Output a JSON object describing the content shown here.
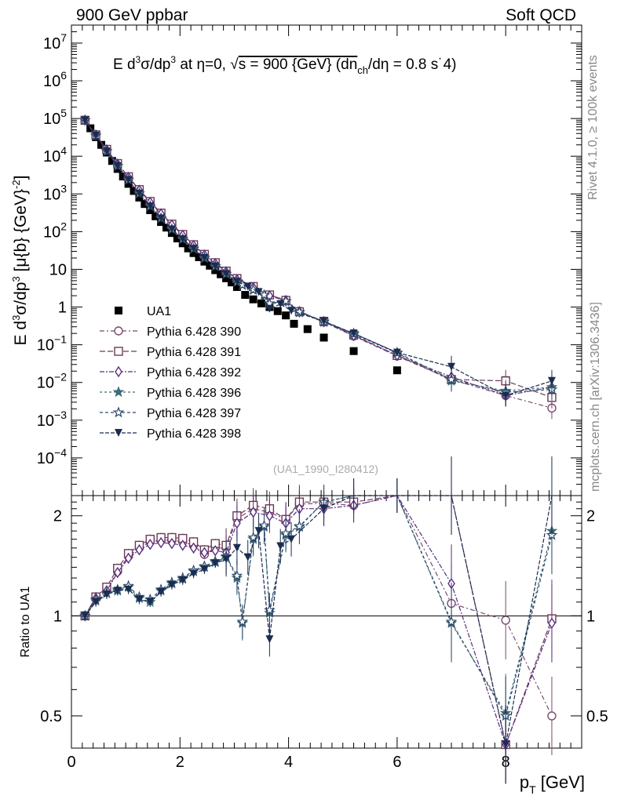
{
  "header": {
    "left": "900 GeV ppbar",
    "right": "Soft QCD",
    "side_rivet": "Rivet 4.1.0, ≥ 100k events",
    "side_mcplots": "mcplots.cern.ch [arXiv:1306.3436]"
  },
  "colors": {
    "data": "#000000",
    "s390": "#7a4a6e",
    "s391": "#6e3a55",
    "s392": "#5a2e80",
    "s396": "#3d6b78",
    "s397": "#2d4a6a",
    "s398": "#1a2d50"
  },
  "chart_data": {
    "type": "scatter",
    "title": "E  d³σ/dp³ at η=0, √s = 900 {GeV} (dn_ch/dη = 0.8 s˙4)",
    "title_parts": {
      "lead": "E   d",
      "sup3": "3",
      "mid": "σ/dp",
      "sup3b": "3",
      "tail1": " at η=0, ",
      "sqrt": "√",
      "tail2": "s = 900 {GeV} (dn",
      "sub": "ch",
      "tail3": "/dη = 0.8 s˙4)"
    },
    "watermark": "(UA1_1990_I280412)",
    "ylabel_main": {
      "a": "E d",
      "sup1": "3",
      "b": "σ/dp",
      "sup2": "3",
      "c": " [μ{b} {GeV}",
      "sup3": "-2",
      "d": "]"
    },
    "ylabel_ratio": "Ratio to UA1",
    "xlabel": {
      "main": "p",
      "sub": "T",
      "unit": " [GeV]"
    },
    "xlim": [
      0,
      9.4
    ],
    "ylim_main": [
      1e-05,
      30000000
    ],
    "ylim_ratio": [
      0.4,
      2.3
    ],
    "x_ticks": [
      "0",
      "2",
      "4",
      "6",
      "8"
    ],
    "y_ticks_main": [
      {
        "v": 10000000.0,
        "base": "10",
        "exp": "7"
      },
      {
        "v": 1000000.0,
        "base": "10",
        "exp": "6"
      },
      {
        "v": 100000.0,
        "base": "10",
        "exp": "5"
      },
      {
        "v": 10000.0,
        "base": "10",
        "exp": "4"
      },
      {
        "v": 1000.0,
        "base": "10",
        "exp": "3"
      },
      {
        "v": 100.0,
        "base": "10",
        "exp": "2"
      },
      {
        "v": 10,
        "base": "10",
        "exp": ""
      },
      {
        "v": 1,
        "base": "1",
        "exp": ""
      },
      {
        "v": 0.1,
        "base": "10",
        "exp": "−1"
      },
      {
        "v": 0.01,
        "base": "10",
        "exp": "−2"
      },
      {
        "v": 0.001,
        "base": "10",
        "exp": "−3"
      },
      {
        "v": 0.0001,
        "base": "10",
        "exp": "−4"
      }
    ],
    "y_ticks_ratio": [
      {
        "v": 2,
        "label": "2"
      },
      {
        "v": 1,
        "label": "1"
      },
      {
        "v": 0.5,
        "label": "0.5"
      }
    ],
    "series": [
      {
        "name": "UA1",
        "key": "data",
        "marker": "square-filled",
        "dash": "",
        "x": [
          0.25,
          0.35,
          0.45,
          0.55,
          0.65,
          0.75,
          0.85,
          0.95,
          1.05,
          1.15,
          1.25,
          1.35,
          1.45,
          1.55,
          1.65,
          1.75,
          1.85,
          1.95,
          2.05,
          2.15,
          2.25,
          2.35,
          2.45,
          2.55,
          2.65,
          2.75,
          2.85,
          2.95,
          3.05,
          3.2,
          3.35,
          3.5,
          3.65,
          3.8,
          3.95,
          4.1,
          4.35,
          4.65,
          5.2,
          6.0,
          7.0,
          8.0,
          8.85
        ],
        "values": [
          90000,
          55000,
          32000,
          20000,
          12500,
          7500,
          4600,
          2900,
          1850,
          1200,
          800,
          540,
          370,
          255,
          180,
          128,
          92,
          66,
          49,
          36,
          27,
          21,
          16,
          12.5,
          9.5,
          7.4,
          5.8,
          4.5,
          3.4,
          2.1,
          1.6,
          1.25,
          1.0,
          0.78,
          0.6,
          0.36,
          0.26,
          0.155,
          0.068,
          0.021,
          0.0115,
          0.0115,
          0.0042
        ]
      },
      {
        "name": "Pythia 6.428 390",
        "key": "s390",
        "marker": "circle-open",
        "dash": "6,3,2,3",
        "x": [
          0.25,
          0.45,
          0.65,
          0.85,
          1.05,
          1.25,
          1.45,
          1.65,
          1.85,
          2.05,
          2.25,
          2.45,
          2.65,
          2.85,
          3.05,
          3.35,
          3.65,
          3.95,
          4.2,
          4.65,
          5.2,
          6.0,
          7.0,
          8.0,
          8.85
        ],
        "values": [
          90000,
          37000,
          15000,
          6300,
          2800,
          1280,
          620,
          305,
          155,
          82,
          44,
          24.5,
          14.5,
          8.8,
          5.6,
          3.4,
          2.05,
          1.55,
          0.78,
          0.4,
          0.17,
          0.05,
          0.012,
          0.0045,
          0.0021
        ],
        "ratio": [
          1.0,
          1.14,
          1.2,
          1.36,
          1.51,
          1.6,
          1.67,
          1.69,
          1.69,
          1.67,
          1.63,
          1.53,
          1.6,
          1.6,
          1.96,
          2.1,
          2.05,
          1.95,
          2.17,
          2.18,
          2.15,
          2.3,
          1.09,
          0.97,
          0.5
        ]
      },
      {
        "name": "Pythia 6.428 391",
        "key": "s391",
        "marker": "square-open",
        "dash": "7,3",
        "x": [
          0.25,
          0.45,
          0.65,
          0.85,
          1.05,
          1.25,
          1.45,
          1.65,
          1.85,
          2.05,
          2.25,
          2.45,
          2.65,
          2.85,
          3.05,
          3.35,
          3.65,
          3.95,
          4.2,
          4.65,
          5.2,
          6.0,
          7.0,
          8.0,
          8.85
        ],
        "values": [
          90000,
          37000,
          15200,
          6400,
          2850,
          1300,
          630,
          310,
          158,
          84,
          45,
          25,
          15,
          9,
          5.7,
          3.5,
          2.1,
          1.5,
          0.75,
          0.42,
          0.18,
          0.052,
          0.012,
          0.011,
          0.004
        ],
        "ratio": [
          1.0,
          1.14,
          1.22,
          1.39,
          1.54,
          1.63,
          1.7,
          1.72,
          1.72,
          1.71,
          1.67,
          1.58,
          1.65,
          1.63,
          2.0,
          2.15,
          2.1,
          1.95,
          2.2,
          2.2,
          2.2,
          2.3,
          2.3,
          0.35,
          0.98
        ]
      },
      {
        "name": "Pythia 6.428 392",
        "key": "s392",
        "marker": "diamond-open",
        "dash": "6,2,2,2",
        "x": [
          0.25,
          0.45,
          0.65,
          0.85,
          1.05,
          1.25,
          1.45,
          1.65,
          1.85,
          2.05,
          2.25,
          2.45,
          2.65,
          2.85,
          3.05,
          3.35,
          3.65,
          3.95,
          4.2,
          4.65,
          5.2,
          6.0,
          7.0,
          8.0,
          8.85
        ],
        "values": [
          90000,
          36500,
          14800,
          6200,
          2750,
          1250,
          600,
          295,
          150,
          80,
          43,
          24,
          14.2,
          8.6,
          5.4,
          3.3,
          2.0,
          1.45,
          0.74,
          0.41,
          0.175,
          0.052,
          0.014,
          0.0045,
          0.0075
        ],
        "ratio": [
          1.0,
          1.13,
          1.19,
          1.35,
          1.49,
          1.58,
          1.64,
          1.66,
          1.65,
          1.63,
          1.6,
          1.55,
          1.57,
          1.55,
          1.9,
          2.05,
          2.0,
          1.9,
          2.1,
          2.1,
          2.15,
          2.3,
          1.25,
          0.35,
          0.95
        ]
      },
      {
        "name": "Pythia 6.428 396",
        "key": "s396",
        "marker": "star-filled",
        "dash": "3,3",
        "x": [
          0.25,
          0.45,
          0.65,
          0.85,
          1.05,
          1.25,
          1.45,
          1.65,
          1.85,
          2.05,
          2.25,
          2.45,
          2.65,
          2.85,
          3.05,
          3.15,
          3.35,
          3.55,
          3.65,
          3.95,
          4.2,
          4.65,
          5.2,
          6.0,
          7.0,
          8.0,
          8.85
        ],
        "values": [
          90000,
          35000,
          13500,
          5500,
          2350,
          1020,
          470,
          225,
          115,
          63,
          35,
          20,
          12,
          7.5,
          4.6,
          3.8,
          2.8,
          2.0,
          1.2,
          1.4,
          0.72,
          0.4,
          0.19,
          0.06,
          0.011,
          0.006,
          0.0075
        ],
        "ratio": [
          1.0,
          1.11,
          1.17,
          1.19,
          1.22,
          1.13,
          1.1,
          1.19,
          1.25,
          1.29,
          1.36,
          1.4,
          1.45,
          1.5,
          1.3,
          0.95,
          1.7,
          1.85,
          1.02,
          1.75,
          1.85,
          2.2,
          2.3,
          2.3,
          0.95,
          0.51,
          1.8
        ]
      },
      {
        "name": "Pythia 6.428 397",
        "key": "s397",
        "marker": "star-open",
        "dash": "4,3",
        "x": [
          0.25,
          0.45,
          0.65,
          0.85,
          1.05,
          1.25,
          1.45,
          1.65,
          1.85,
          2.05,
          2.25,
          2.45,
          2.65,
          2.85,
          3.05,
          3.15,
          3.35,
          3.55,
          3.65,
          3.95,
          4.2,
          4.65,
          5.2,
          6.0,
          7.0,
          8.0,
          8.85
        ],
        "values": [
          90000,
          35200,
          13600,
          5550,
          2380,
          1030,
          475,
          228,
          116,
          64,
          35.5,
          20.5,
          12.2,
          7.6,
          4.7,
          3.9,
          2.9,
          2.1,
          1.25,
          1.45,
          0.74,
          0.41,
          0.2,
          0.062,
          0.012,
          0.0055,
          0.0065
        ],
        "ratio": [
          1.0,
          1.12,
          1.17,
          1.2,
          1.23,
          1.14,
          1.12,
          1.2,
          1.26,
          1.3,
          1.37,
          1.41,
          1.46,
          1.51,
          1.32,
          0.96,
          1.72,
          1.87,
          1.04,
          1.77,
          1.86,
          2.2,
          2.3,
          2.3,
          0.96,
          0.5,
          1.75
        ]
      },
      {
        "name": "Pythia 6.428 398",
        "key": "s398",
        "marker": "tri-down-filled",
        "dash": "5,2",
        "x": [
          0.25,
          0.45,
          0.65,
          0.85,
          1.05,
          1.25,
          1.45,
          1.65,
          1.85,
          2.05,
          2.25,
          2.45,
          2.65,
          2.85,
          3.05,
          3.25,
          3.45,
          3.65,
          3.85,
          4.05,
          4.65,
          5.2,
          6.0,
          7.0,
          8.0,
          8.85
        ],
        "values": [
          90000,
          35000,
          13400,
          5500,
          2350,
          1020,
          470,
          225,
          115,
          63,
          35,
          20,
          12,
          7.5,
          4.7,
          3.5,
          2.5,
          0.9,
          1.2,
          0.8,
          0.42,
          0.2,
          0.062,
          0.026,
          0.0045,
          0.011
        ],
        "ratio": [
          1.0,
          1.1,
          1.16,
          1.19,
          1.2,
          1.12,
          1.1,
          1.18,
          1.24,
          1.28,
          1.34,
          1.38,
          1.44,
          1.48,
          1.6,
          1.5,
          1.8,
          0.85,
          1.62,
          1.7,
          2.1,
          2.3,
          2.3,
          2.3,
          0.35,
          2.3
        ]
      }
    ]
  }
}
